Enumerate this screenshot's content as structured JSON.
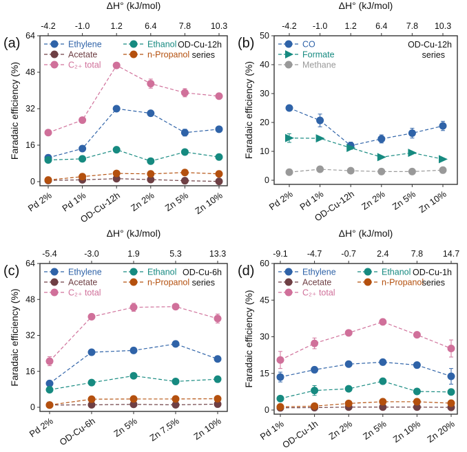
{
  "chart_data": [
    {
      "type": "line",
      "panel_label": "(a)",
      "top_axis_title": "ΔH° (kJ/mol)",
      "top_ticks": [
        "-4.2",
        "-1.0",
        "1.2",
        "6.4",
        "7.8",
        "10.3"
      ],
      "categories": [
        "Pd 2%",
        "Pd 1%",
        "OD-Cu-12h",
        "Zn 2%",
        "Zn 5%",
        "Zn 10%"
      ],
      "ylabel": "Faradaic efficiency (%)",
      "ylim": [
        0,
        64
      ],
      "yticks": [
        0,
        16,
        32,
        48,
        64
      ],
      "annotation": [
        "OD-Cu-12h",
        "series"
      ],
      "series": [
        {
          "name": "Ethylene",
          "color": "#2f63a8",
          "marker": "circle",
          "values": [
            10.5,
            14.5,
            32,
            30,
            21.5,
            23
          ],
          "err": [
            0.5,
            0.5,
            1.2,
            0.5,
            1.5,
            0.5
          ]
        },
        {
          "name": "Ethanol",
          "color": "#168a80",
          "marker": "circle",
          "values": [
            9.5,
            10,
            14,
            9,
            13,
            10.8
          ],
          "err": [
            0.5,
            0.5,
            0.5,
            0.8,
            0.5,
            0.5
          ]
        },
        {
          "name": "Acetate",
          "color": "#6e3f44",
          "marker": "circle",
          "values": [
            0.5,
            0.8,
            1.3,
            0.9,
            0.4,
            0.1
          ],
          "err": [
            0.2,
            0.2,
            0.2,
            0.2,
            0.2,
            0.1
          ]
        },
        {
          "name": "n-Propanol",
          "color": "#b4500e",
          "marker": "circle",
          "values": [
            0.7,
            2.2,
            3.6,
            3.4,
            4.0,
            3.4
          ],
          "err": [
            0.2,
            0.3,
            0.3,
            0.3,
            0.3,
            0.3
          ]
        },
        {
          "name": "C₂₊ total",
          "color": "#d0709a",
          "marker": "circle",
          "values": [
            21.5,
            27,
            51,
            43,
            39,
            37.5
          ],
          "err": [
            0.5,
            0.5,
            0.5,
            2,
            1.8,
            0.5
          ]
        }
      ]
    },
    {
      "type": "line",
      "panel_label": "(b)",
      "top_axis_title": "ΔH° (kJ/mol)",
      "top_ticks": [
        "-4.2",
        "-1.0",
        "1.2",
        "6.4",
        "7.8",
        "10.3"
      ],
      "categories": [
        "Pd 2%",
        "Pd 1%",
        "OD-Cu-12h",
        "Zn 2%",
        "Zn 5%",
        "Zn 10%"
      ],
      "ylabel": "Faradaic efficiency (%)",
      "ylim": [
        0,
        50
      ],
      "yticks": [
        0,
        10,
        20,
        30,
        40,
        50
      ],
      "annotation": [
        "OD-Cu-12h",
        "series"
      ],
      "series": [
        {
          "name": "CO",
          "color": "#2f63a8",
          "marker": "circle",
          "values": [
            25,
            20.7,
            12,
            14.3,
            16.3,
            18.8
          ],
          "err": [
            0.3,
            2.2,
            1.2,
            1.4,
            1.7,
            1.6
          ]
        },
        {
          "name": "Formate",
          "color": "#168a80",
          "marker": "triangle",
          "values": [
            14.6,
            14.5,
            11.2,
            8,
            9.5,
            7.3
          ],
          "err": [
            1.5,
            0.3,
            0.5,
            0.3,
            0.3,
            0.3
          ]
        },
        {
          "name": "Methane",
          "color": "#999999",
          "marker": "circle",
          "values": [
            2.8,
            3.8,
            3.3,
            3,
            3,
            3.5
          ],
          "err": [
            0.8,
            0.8,
            0.3,
            0.3,
            0.3,
            1.0
          ]
        }
      ]
    },
    {
      "type": "line",
      "panel_label": "(c)",
      "top_axis_title": "ΔH° (kJ/mol)",
      "top_ticks": [
        "-5.4",
        "-3.0",
        "1.9",
        "5.3",
        "13.3"
      ],
      "categories": [
        "Pd 2%",
        "OD-Cu-6h",
        "Zn 5%",
        "Zn 7.5%",
        "Zn 10%"
      ],
      "ylabel": "Faradaic efficiency (%)",
      "ylim": [
        0,
        64
      ],
      "yticks": [
        0,
        16,
        32,
        48,
        64
      ],
      "annotation": [
        "OD-Cu-6h",
        "series"
      ],
      "series": [
        {
          "name": "Ethylene",
          "color": "#2f63a8",
          "marker": "circle",
          "values": [
            10.6,
            24.5,
            25.3,
            28.2,
            21.5
          ],
          "err": [
            0.5,
            0.5,
            0.5,
            0.5,
            0.5
          ]
        },
        {
          "name": "Ethanol",
          "color": "#168a80",
          "marker": "circle",
          "values": [
            7.8,
            11,
            14,
            11.5,
            12.5
          ],
          "err": [
            0.5,
            0.5,
            0.5,
            0.5,
            0.5
          ]
        },
        {
          "name": "Acetate",
          "color": "#6e3f44",
          "marker": "circle",
          "values": [
            1,
            1.1,
            1.3,
            1.1,
            1.4
          ],
          "err": [
            0.2,
            0.2,
            0.2,
            0.2,
            0.2
          ]
        },
        {
          "name": "n-Propanol",
          "color": "#b4500e",
          "marker": "circle",
          "values": [
            1,
            3.6,
            3.7,
            3.7,
            3.8
          ],
          "err": [
            0.2,
            0.2,
            0.2,
            0.2,
            0.2
          ]
        },
        {
          "name": "C₂₊ total",
          "color": "#d0709a",
          "marker": "circle",
          "values": [
            20.5,
            40.3,
            44.5,
            44.8,
            39.5
          ],
          "err": [
            2,
            0.5,
            1.8,
            0.5,
            2
          ]
        }
      ]
    },
    {
      "type": "line",
      "panel_label": "(d)",
      "top_axis_title": "ΔH° (kJ/mol)",
      "top_ticks": [
        "-9.1",
        "-4.7",
        "-0.7",
        "2.4",
        "7.8",
        "14.7"
      ],
      "categories": [
        "Pd 1%",
        "OD-Cu-1h",
        "Zn 2%",
        "Zn 5%",
        "Zn 10%",
        "Zn 20%"
      ],
      "ylabel": "Faradaic efficiency (%)",
      "ylim": [
        0,
        60
      ],
      "yticks": [
        0,
        15,
        30,
        45,
        60
      ],
      "annotation": [
        "OD-Cu-1h",
        "series"
      ],
      "series": [
        {
          "name": "Ethylene",
          "color": "#2f63a8",
          "marker": "circle",
          "values": [
            13.5,
            16.5,
            18.8,
            19.6,
            18.4,
            13.8
          ],
          "err": [
            2,
            0.5,
            0.5,
            0.5,
            0.5,
            3.2
          ]
        },
        {
          "name": "Ethanol",
          "color": "#168a80",
          "marker": "circle",
          "values": [
            4.7,
            8,
            8.7,
            11.8,
            7.6,
            7.4
          ],
          "err": [
            0.5,
            2,
            0.5,
            0.5,
            0.5,
            0.5
          ]
        },
        {
          "name": "Acetate",
          "color": "#6e3f44",
          "marker": "circle",
          "values": [
            0.9,
            1,
            1.2,
            1.2,
            1.2,
            1.1
          ],
          "err": [
            0.2,
            0.2,
            0.2,
            0.2,
            0.2,
            0.2
          ]
        },
        {
          "name": "n-Propanol",
          "color": "#b4500e",
          "marker": "circle",
          "values": [
            1.3,
            1.6,
            2.7,
            3.4,
            3.4,
            2.8
          ],
          "err": [
            0.3,
            0.3,
            0.3,
            0.3,
            0.3,
            0.3
          ]
        },
        {
          "name": "C₂₊ total",
          "color": "#d0709a",
          "marker": "circle",
          "values": [
            20.5,
            27.3,
            31.6,
            36.1,
            30.8,
            25.2
          ],
          "err": [
            3.5,
            2.2,
            0.5,
            0.5,
            0.5,
            3.5
          ]
        }
      ]
    }
  ]
}
